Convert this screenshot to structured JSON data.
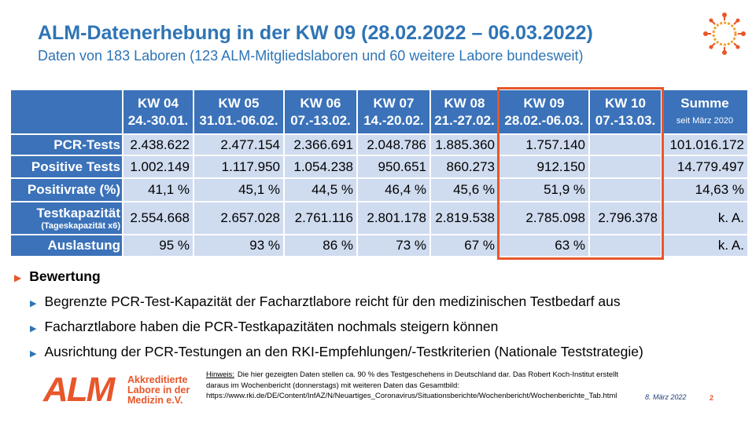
{
  "header": {
    "title": "ALM-Datenerhebung in der KW 09 (28.02.2022 – 06.03.2022)",
    "subtitle": "Daten von 183 Laboren (123 ALM-Mitgliedslaboren und 60 weitere Labore bundesweit)"
  },
  "table": {
    "columns": [
      {
        "week": "KW 04",
        "dates": "24.-30.01."
      },
      {
        "week": "KW 05",
        "dates": "31.01.-06.02."
      },
      {
        "week": "KW 06",
        "dates": "07.-13.02."
      },
      {
        "week": "KW 07",
        "dates": "14.-20.02."
      },
      {
        "week": "KW 08",
        "dates": "21.-27.02."
      },
      {
        "week": "KW 09",
        "dates": "28.02.-06.03."
      },
      {
        "week": "KW 10",
        "dates": "07.-13.03."
      },
      {
        "week": "Summe",
        "dates": "seit März 2020"
      }
    ],
    "rows": [
      {
        "label": "PCR-Tests",
        "cells": [
          "2.438.622",
          "2.477.154",
          "2.366.691",
          "2.048.786",
          "1.885.360",
          "1.757.140",
          null,
          "101.016.172"
        ]
      },
      {
        "label": "Positive Tests",
        "cells": [
          "1.002.149",
          "1.117.950",
          "1.054.238",
          "950.651",
          "860.273",
          "912.150",
          null,
          "14.779.497"
        ]
      },
      {
        "label": "Positivrate (%)",
        "cells": [
          "41,1 %",
          "45,1 %",
          "44,5 %",
          "46,4 %",
          "45,6 %",
          "51,9 %",
          null,
          "14,63 %"
        ]
      },
      {
        "label": "Testkapazität",
        "sublabel": "(Tageskapazität x6)",
        "cells": [
          "2.554.668",
          "2.657.028",
          "2.761.116",
          "2.801.178",
          "2.819.538",
          "2.785.098",
          "2.796.378",
          "k. A."
        ]
      },
      {
        "label": "Auslastung",
        "cells": [
          "95 %",
          "93 %",
          "86 %",
          "73 %",
          "67 %",
          "63 %",
          null,
          "k. A."
        ]
      }
    ]
  },
  "assessment": {
    "heading": "Bewertung",
    "items": [
      "Begrenzte PCR-Test-Kapazität der Facharztlabore reicht für den medizinischen Testbedarf aus",
      "Facharztlabore haben die PCR-Testkapazitäten nochmals steigern können",
      "Ausrichtung der PCR-Testungen an den RKI-Empfehlungen/-Testkriterien (Nationale Teststrategie)"
    ]
  },
  "footer": {
    "logo": {
      "mark": "ALM",
      "lines": [
        "Akkreditierte",
        "Labore in der",
        "Medizin e.V."
      ]
    },
    "note_label": "Hinweis:",
    "note": "Die hier gezeigten Daten stellen ca. 90 % des Testgeschehens in Deutschland dar. Das Robert Koch-Institut erstellt daraus im Wochenbericht (donnerstags) mit weiteren Daten das Gesamtbild: https://www.rki.de/DE/Content/InfAZ/N/Neuartiges_Coronavirus/Situationsberichte/Wochenbericht/Wochenberichte_Tab.html",
    "date": "8. März 2022",
    "page": "2"
  }
}
